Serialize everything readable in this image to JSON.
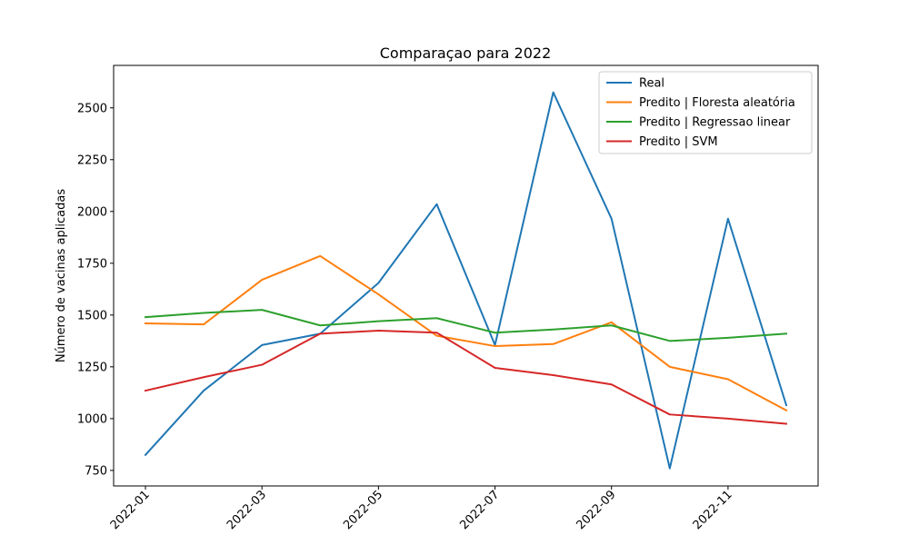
{
  "chart_data": {
    "type": "line",
    "title": "Comparaçao para 2022",
    "xlabel": "",
    "ylabel": "Número de vacinas aplicadas",
    "x": [
      "2022-01",
      "2022-02",
      "2022-03",
      "2022-04",
      "2022-05",
      "2022-06",
      "2022-07",
      "2022-08",
      "2022-09",
      "2022-10",
      "2022-11",
      "2022-12"
    ],
    "x_ticks": [
      "2022-01",
      "2022-03",
      "2022-05",
      "2022-07",
      "2022-09",
      "2022-11"
    ],
    "y_ticks": [
      750,
      1000,
      1250,
      1500,
      1750,
      2000,
      2250,
      2500
    ],
    "ylim": [
      675,
      2705
    ],
    "grid": false,
    "legend_position": "top-right",
    "series": [
      {
        "name": "Real",
        "color": "#1f77b4",
        "values": [
          825,
          1135,
          1355,
          1410,
          1655,
          2035,
          1355,
          2575,
          1965,
          760,
          1965,
          1065
        ]
      },
      {
        "name": "Predito | Floresta aleatória",
        "color": "#ff7f0e",
        "values": [
          1460,
          1455,
          1670,
          1785,
          1600,
          1400,
          1350,
          1360,
          1465,
          1250,
          1190,
          1040
        ]
      },
      {
        "name": "Predito | Regressao linear",
        "color": "#2ca02c",
        "values": [
          1490,
          1510,
          1525,
          1450,
          1470,
          1485,
          1415,
          1430,
          1450,
          1375,
          1390,
          1410
        ]
      },
      {
        "name": "Predito | SVM",
        "color": "#d62728",
        "values": [
          1135,
          1200,
          1260,
          1410,
          1425,
          1415,
          1245,
          1210,
          1165,
          1020,
          1000,
          975
        ]
      }
    ]
  }
}
